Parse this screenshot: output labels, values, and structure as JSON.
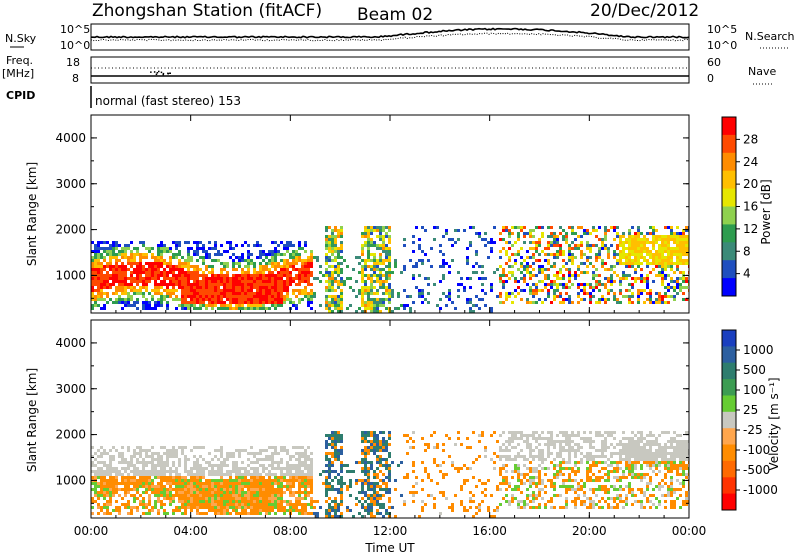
{
  "header": {
    "station": "Zhongshan Station (fitACF)",
    "beam": "Beam 02",
    "date": "20/Dec/2012"
  },
  "top_panel": {
    "left_label": "N.Sky",
    "right_label": "N.Search",
    "left_ticks": [
      "10^5",
      "10^0"
    ],
    "right_ticks": [
      "10^5",
      "10^0"
    ]
  },
  "freq_panel": {
    "left_label_1": "Freq.",
    "left_label_2": "[MHz]",
    "right_label": "Nave",
    "left_ticks": [
      "18",
      "8"
    ],
    "right_ticks": [
      "60",
      "0"
    ]
  },
  "cpid": {
    "label": "CPID",
    "text": "normal (fast stereo) 153"
  },
  "chart_data": [
    {
      "type": "heatmap",
      "name": "power",
      "ylabel": "Slant Range [km]",
      "ylim": [
        180,
        4500
      ],
      "y_ticks": [
        "1000",
        "2000",
        "3000",
        "4000"
      ],
      "x_ticks": [
        "00:00",
        "04:00",
        "08:00",
        "12:00",
        "16:00",
        "20:00",
        "00:00"
      ],
      "colorbar_label": "Power [dB]",
      "colorbar_ticks": [
        "28",
        "24",
        "20",
        "16",
        "12",
        "8",
        "4"
      ],
      "colorbar_colors": [
        "#ff0000",
        "#ff4a00",
        "#ff8c00",
        "#ffbf00",
        "#e6e600",
        "#8fd14f",
        "#2e9c4f",
        "#3b8a78",
        "#1f4fbf",
        "#0000ff"
      ]
    },
    {
      "type": "heatmap",
      "name": "velocity",
      "ylabel": "Slant Range [km]",
      "ylim": [
        180,
        4500
      ],
      "y_ticks": [
        "1000",
        "2000",
        "3000",
        "4000"
      ],
      "x_ticks": [
        "00:00",
        "04:00",
        "08:00",
        "12:00",
        "16:00",
        "20:00",
        "00:00"
      ],
      "xlabel": "Time UT",
      "colorbar_label": "Velocity [m s⁻¹]",
      "colorbar_ticks": [
        "1000",
        "500",
        "100",
        "25",
        "-25",
        "-100",
        "-500",
        "-1000"
      ],
      "colorbar_colors": [
        "#1a3fbf",
        "#2c5fa0",
        "#2e7d6e",
        "#3c9c52",
        "#66cc33",
        "#c8c8c0",
        "#ffa64d",
        "#ff8c00",
        "#ff6a00",
        "#ff3300",
        "#ff0000"
      ]
    }
  ]
}
